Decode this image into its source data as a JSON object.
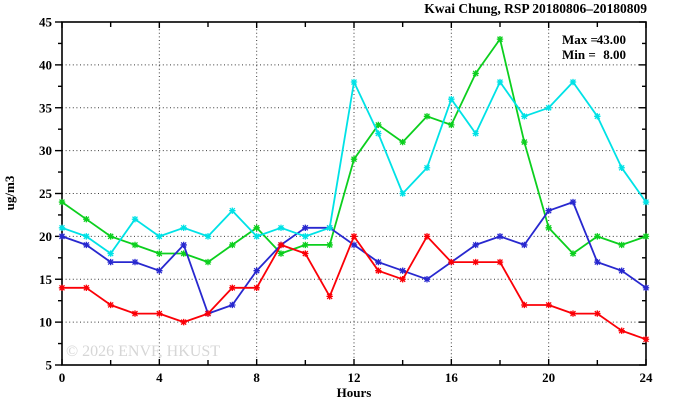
{
  "chart_data": {
    "type": "line",
    "title": "Kwai Chung, RSP 20180806–20180809",
    "xlabel": "Hours",
    "ylabel": "ug/m3",
    "watermark": "© 2026 ENVF, HKUST",
    "xlim": [
      0,
      24
    ],
    "ylim": [
      5,
      45
    ],
    "grid": true,
    "grid_x": [
      4,
      8,
      12,
      16,
      20
    ],
    "grid_y": [
      10,
      15,
      20,
      25,
      30,
      35,
      40
    ],
    "x_major": [
      0,
      4,
      8,
      12,
      16,
      20,
      24
    ],
    "x_tick_labels": [
      "0",
      "4",
      "8",
      "12",
      "16",
      "20",
      "24"
    ],
    "y_major": [
      5,
      10,
      15,
      20,
      25,
      30,
      35,
      40,
      45
    ],
    "y_tick_labels": [
      "5",
      "10",
      "15",
      "20",
      "25",
      "30",
      "35",
      "40",
      "45"
    ],
    "legend": {
      "position": "top-right-inside",
      "entries": [
        {
          "label": "Max =",
          "value": "43.00"
        },
        {
          "label": "Min =",
          "value": "8.00"
        }
      ]
    },
    "x": [
      0,
      1,
      2,
      3,
      4,
      5,
      6,
      7,
      8,
      9,
      10,
      11,
      12,
      13,
      14,
      15,
      16,
      17,
      18,
      19,
      20,
      21,
      22,
      23,
      24
    ],
    "series": [
      {
        "name": "series-green",
        "color": "#0ccf1e",
        "values": [
          24,
          22,
          20,
          19,
          18,
          18,
          17,
          19,
          21,
          18,
          19,
          19,
          29,
          33,
          31,
          34,
          33,
          39,
          43,
          31,
          21,
          18,
          20,
          19,
          20
        ]
      },
      {
        "name": "series-blue",
        "color": "#2828cf",
        "values": [
          20,
          19,
          17,
          17,
          16,
          19,
          11,
          12,
          16,
          19,
          21,
          21,
          19,
          17,
          16,
          15,
          17,
          19,
          20,
          19,
          23,
          24,
          17,
          16,
          14
        ]
      },
      {
        "name": "series-red",
        "color": "#fb0007",
        "values": [
          14,
          14,
          12,
          11,
          11,
          10,
          11,
          14,
          14,
          19,
          18,
          13,
          20,
          16,
          15,
          20,
          17,
          17,
          17,
          12,
          12,
          11,
          11,
          9,
          8
        ]
      },
      {
        "name": "series-cyan",
        "color": "#00e2e6",
        "values": [
          21,
          20,
          18,
          22,
          20,
          21,
          20,
          23,
          20,
          21,
          20,
          21,
          38,
          32,
          25,
          28,
          36,
          32,
          38,
          34,
          35,
          38,
          34,
          28,
          24
        ]
      }
    ],
    "colors": {
      "grid": "#3a3a3a",
      "border": "#000000",
      "text": "#000000",
      "watermark": "#d6d6d6"
    }
  }
}
